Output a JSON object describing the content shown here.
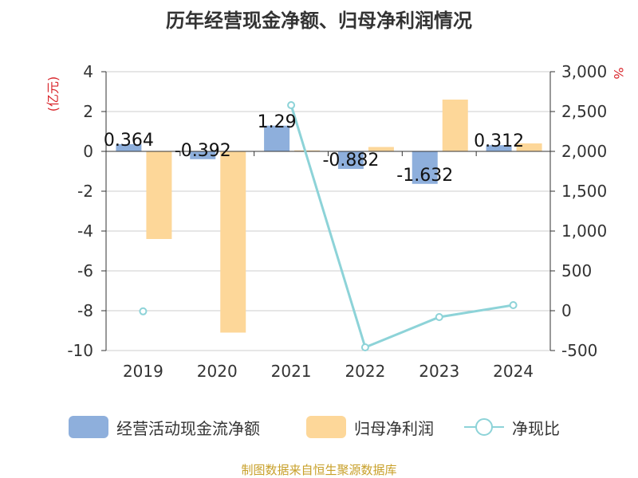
{
  "chart_data": {
    "type": "bar",
    "title": "历年经营现金净额、归母净利润情况",
    "categories": [
      "2019",
      "2020",
      "2021",
      "2022",
      "2023",
      "2024"
    ],
    "y_left": {
      "unit_label": "(亿元)",
      "min": -10,
      "max": 4,
      "ticks": [
        "4",
        "2",
        "0",
        "-2",
        "-4",
        "-6",
        "-8",
        "-10"
      ]
    },
    "y_right": {
      "unit_label": "%",
      "min": -500,
      "max": 3000,
      "ticks": [
        "3,000",
        "2,500",
        "2,000",
        "1,500",
        "1,000",
        "500",
        "0",
        "-500"
      ]
    },
    "series": [
      {
        "name": "经营活动现金流净额",
        "type": "bar",
        "axis": "left",
        "color": "#8eafdc",
        "values": [
          0.364,
          -0.392,
          1.29,
          -0.882,
          -1.632,
          0.312
        ],
        "labels": [
          "0.364",
          "-0.392",
          "1.29",
          "-0.882",
          "-1.632",
          "0.312"
        ]
      },
      {
        "name": "归母净利润",
        "type": "bar",
        "axis": "left",
        "color": "#fdd799",
        "values": [
          -4.4,
          -9.1,
          0.05,
          0.22,
          2.6,
          0.4
        ]
      },
      {
        "name": "净现比",
        "type": "line",
        "axis": "right",
        "color": "#8dd3d8",
        "values": [
          -8,
          null,
          2580,
          -460,
          -80,
          70
        ]
      }
    ],
    "grid": true,
    "legend_position": "bottom"
  },
  "legend": {
    "items": [
      "经营活动现金流净额",
      "归母净利润",
      "净现比"
    ]
  },
  "source": "制图数据来自恒生聚源数据库"
}
